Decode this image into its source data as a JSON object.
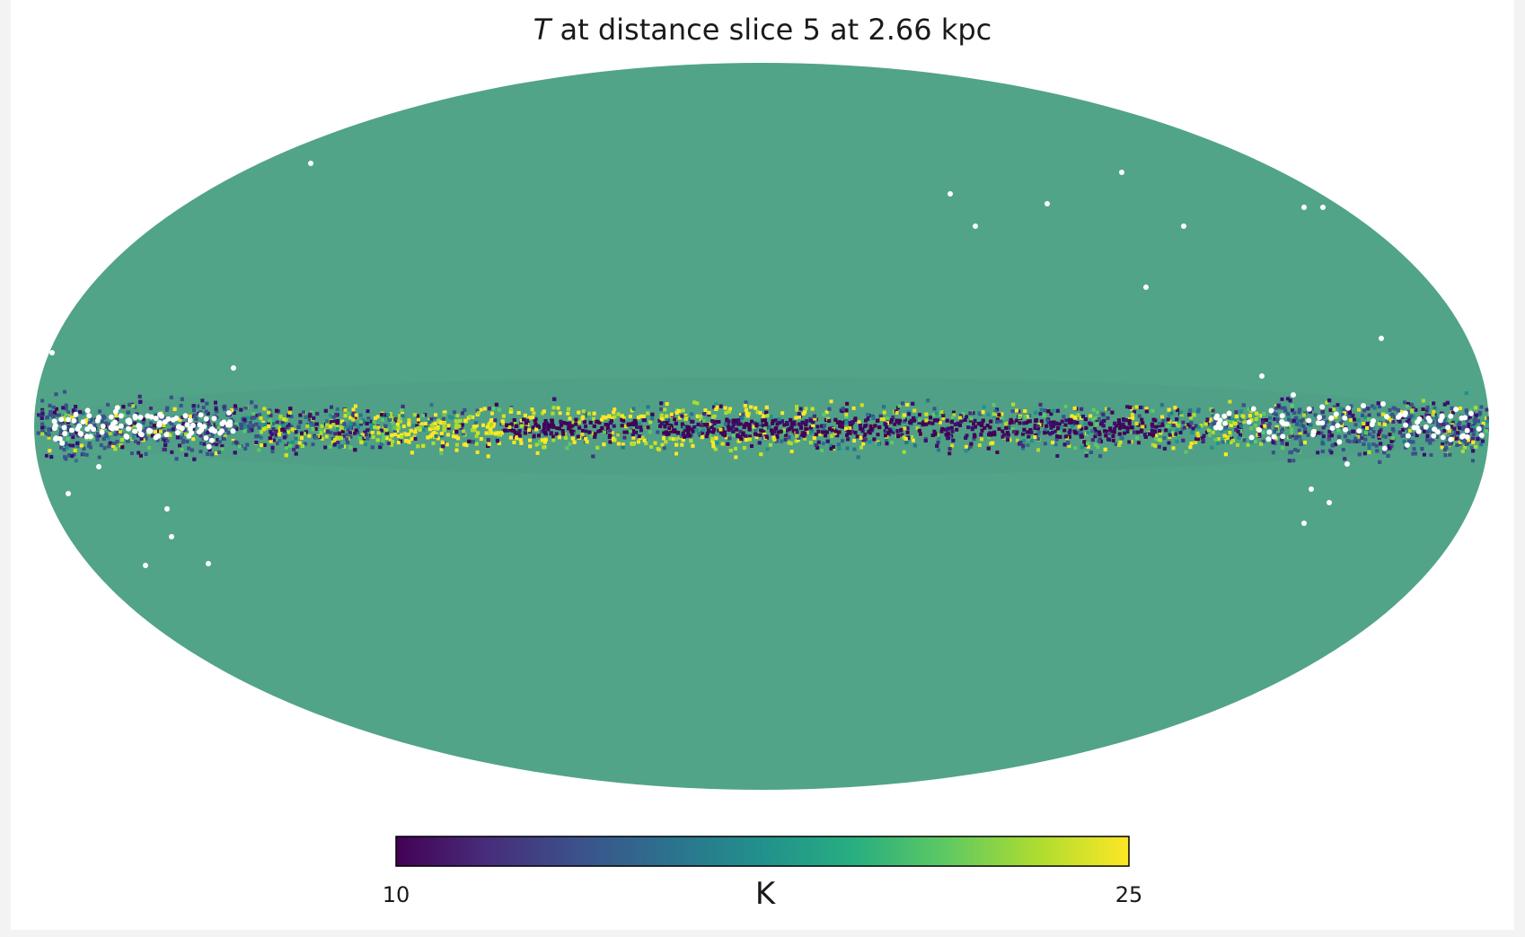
{
  "chart_data": {
    "type": "heatmap",
    "projection": "mollweide",
    "title_symbol": "T",
    "title_rest": " at distance slice 5 at 2.66 kpc",
    "colormap": "viridis",
    "background_value_color": "#51a488",
    "missing_pixel_color": "#ffffff",
    "colorbar": {
      "min": 10,
      "max": 25,
      "min_label": "10",
      "max_label": "25",
      "label": "K",
      "orientation": "horizontal"
    },
    "grid": false
  }
}
